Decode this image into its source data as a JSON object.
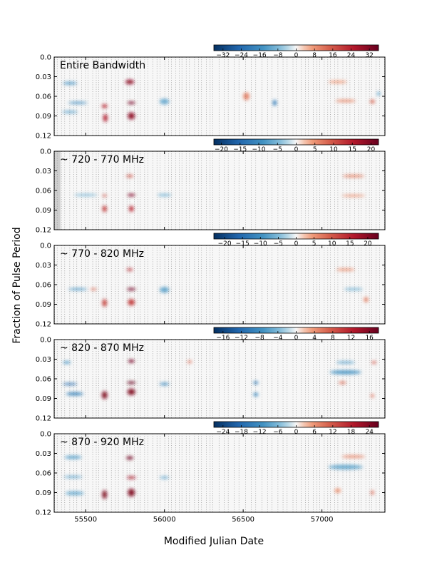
{
  "chart_data": {
    "type": "heatmap",
    "xlabel": "Modified Julian Date",
    "ylabel": "Fraction of Pulse Period",
    "xlim": [
      55300,
      57400
    ],
    "ylim": [
      0.12,
      0.0
    ],
    "x_ticks": [
      55500,
      56000,
      56500,
      57000
    ],
    "y_ticks": [
      0.0,
      0.03,
      0.06,
      0.09,
      0.12
    ],
    "y_tick_labels": [
      "0.0",
      "0.03",
      "0.06",
      "0.09",
      "0.12"
    ],
    "colormap": "diverging red-blue",
    "colorbar_position": "top-right",
    "observation_markers": "dotted vertical lines",
    "panels": [
      {
        "title": "Entire Bandwidth",
        "colorbar_ticks": [
          -32,
          -24,
          -16,
          -8,
          0,
          8,
          16,
          24,
          32
        ],
        "vmax": 36,
        "blobs": [
          {
            "x": 55780,
            "y": 0.038,
            "w": 55,
            "h": 0.007,
            "v": 30
          },
          {
            "x": 55620,
            "y": 0.075,
            "w": 35,
            "h": 0.006,
            "v": 22
          },
          {
            "x": 55625,
            "y": 0.093,
            "w": 28,
            "h": 0.012,
            "v": 24
          },
          {
            "x": 55790,
            "y": 0.07,
            "w": 50,
            "h": 0.004,
            "v": 34
          },
          {
            "x": 55790,
            "y": 0.09,
            "w": 45,
            "h": 0.011,
            "v": 30
          },
          {
            "x": 55400,
            "y": 0.04,
            "w": 90,
            "h": 0.004,
            "v": -14
          },
          {
            "x": 55450,
            "y": 0.07,
            "w": 120,
            "h": 0.003,
            "v": -16
          },
          {
            "x": 55400,
            "y": 0.084,
            "w": 100,
            "h": 0.004,
            "v": -10
          },
          {
            "x": 56000,
            "y": 0.068,
            "w": 60,
            "h": 0.009,
            "v": -10
          },
          {
            "x": 56520,
            "y": 0.06,
            "w": 40,
            "h": 0.012,
            "v": 10
          },
          {
            "x": 56700,
            "y": 0.07,
            "w": 25,
            "h": 0.009,
            "v": -20
          },
          {
            "x": 57150,
            "y": 0.067,
            "w": 130,
            "h": 0.004,
            "v": 9
          },
          {
            "x": 57320,
            "y": 0.068,
            "w": 30,
            "h": 0.006,
            "v": 14
          },
          {
            "x": 57360,
            "y": 0.056,
            "w": 20,
            "h": 0.006,
            "v": -12
          },
          {
            "x": 57100,
            "y": 0.038,
            "w": 120,
            "h": 0.004,
            "v": 7
          }
        ]
      },
      {
        "title": "~ 720 - 770 MHz",
        "colorbar_ticks": [
          -20,
          -15,
          -10,
          -5,
          0,
          5,
          10,
          15,
          20
        ],
        "vmax": 22,
        "no_data_until": 55340,
        "blobs": [
          {
            "x": 55790,
            "y": 0.067,
            "w": 50,
            "h": 0.004,
            "v": 20
          },
          {
            "x": 55780,
            "y": 0.038,
            "w": 45,
            "h": 0.004,
            "v": 10
          },
          {
            "x": 55790,
            "y": 0.088,
            "w": 30,
            "h": 0.009,
            "v": 14
          },
          {
            "x": 55620,
            "y": 0.088,
            "w": 28,
            "h": 0.01,
            "v": 12
          },
          {
            "x": 55620,
            "y": 0.068,
            "w": 25,
            "h": 0.004,
            "v": 10
          },
          {
            "x": 55500,
            "y": 0.067,
            "w": 150,
            "h": 0.003,
            "v": -5
          },
          {
            "x": 56000,
            "y": 0.067,
            "w": 90,
            "h": 0.004,
            "v": -5
          },
          {
            "x": 57200,
            "y": 0.038,
            "w": 140,
            "h": 0.004,
            "v": 6
          },
          {
            "x": 57200,
            "y": 0.068,
            "w": 150,
            "h": 0.003,
            "v": 5
          }
        ]
      },
      {
        "title": "~ 770 - 820 MHz",
        "colorbar_ticks": [
          -20,
          -15,
          -10,
          -5,
          0,
          5,
          10,
          15,
          20
        ],
        "vmax": 23,
        "blobs": [
          {
            "x": 55780,
            "y": 0.037,
            "w": 40,
            "h": 0.004,
            "v": 14
          },
          {
            "x": 55790,
            "y": 0.067,
            "w": 55,
            "h": 0.004,
            "v": 22
          },
          {
            "x": 55790,
            "y": 0.087,
            "w": 45,
            "h": 0.01,
            "v": 13
          },
          {
            "x": 55620,
            "y": 0.088,
            "w": 30,
            "h": 0.012,
            "v": 12
          },
          {
            "x": 55450,
            "y": 0.067,
            "w": 120,
            "h": 0.003,
            "v": -9
          },
          {
            "x": 55550,
            "y": 0.067,
            "w": 40,
            "h": 0.003,
            "v": 8
          },
          {
            "x": 56000,
            "y": 0.068,
            "w": 60,
            "h": 0.009,
            "v": -7
          },
          {
            "x": 57150,
            "y": 0.037,
            "w": 120,
            "h": 0.004,
            "v": 5
          },
          {
            "x": 57200,
            "y": 0.067,
            "w": 120,
            "h": 0.004,
            "v": -5
          },
          {
            "x": 57280,
            "y": 0.083,
            "w": 30,
            "h": 0.008,
            "v": 6
          }
        ]
      },
      {
        "title": "~ 820 - 870 MHz",
        "colorbar_ticks": [
          -16,
          -12,
          -8,
          -4,
          0,
          4,
          8,
          12,
          16
        ],
        "vmax": 18,
        "blobs": [
          {
            "x": 55790,
            "y": 0.033,
            "w": 40,
            "h": 0.005,
            "v": 17
          },
          {
            "x": 55790,
            "y": 0.066,
            "w": 55,
            "h": 0.004,
            "v": 18
          },
          {
            "x": 55790,
            "y": 0.08,
            "w": 50,
            "h": 0.01,
            "v": 16
          },
          {
            "x": 55620,
            "y": 0.085,
            "w": 35,
            "h": 0.012,
            "v": 16
          },
          {
            "x": 55400,
            "y": 0.068,
            "w": 90,
            "h": 0.003,
            "v": -12
          },
          {
            "x": 55430,
            "y": 0.083,
            "w": 110,
            "h": 0.005,
            "v": -9
          },
          {
            "x": 55380,
            "y": 0.035,
            "w": 50,
            "h": 0.004,
            "v": -7
          },
          {
            "x": 56000,
            "y": 0.068,
            "w": 60,
            "h": 0.004,
            "v": -8
          },
          {
            "x": 56580,
            "y": 0.066,
            "w": 30,
            "h": 0.005,
            "v": -10
          },
          {
            "x": 56580,
            "y": 0.084,
            "w": 30,
            "h": 0.006,
            "v": -8
          },
          {
            "x": 56160,
            "y": 0.034,
            "w": 30,
            "h": 0.004,
            "v": 6
          },
          {
            "x": 57150,
            "y": 0.05,
            "w": 200,
            "h": 0.006,
            "v": -7
          },
          {
            "x": 57150,
            "y": 0.035,
            "w": 120,
            "h": 0.004,
            "v": -5
          },
          {
            "x": 57330,
            "y": 0.035,
            "w": 30,
            "h": 0.004,
            "v": 8
          },
          {
            "x": 57130,
            "y": 0.066,
            "w": 50,
            "h": 0.004,
            "v": 6
          },
          {
            "x": 57320,
            "y": 0.086,
            "w": 20,
            "h": 0.006,
            "v": 6
          }
        ]
      },
      {
        "title": "~ 870 - 920 MHz",
        "colorbar_ticks": [
          -24,
          -18,
          -12,
          -6,
          0,
          6,
          12,
          18,
          24
        ],
        "vmax": 27,
        "blobs": [
          {
            "x": 55780,
            "y": 0.037,
            "w": 45,
            "h": 0.005,
            "v": 26
          },
          {
            "x": 55790,
            "y": 0.067,
            "w": 55,
            "h": 0.004,
            "v": 20
          },
          {
            "x": 55790,
            "y": 0.09,
            "w": 45,
            "h": 0.012,
            "v": 24
          },
          {
            "x": 55620,
            "y": 0.093,
            "w": 30,
            "h": 0.013,
            "v": 24
          },
          {
            "x": 55420,
            "y": 0.036,
            "w": 110,
            "h": 0.005,
            "v": -9
          },
          {
            "x": 55420,
            "y": 0.066,
            "w": 120,
            "h": 0.003,
            "v": -9
          },
          {
            "x": 55430,
            "y": 0.091,
            "w": 120,
            "h": 0.006,
            "v": -7
          },
          {
            "x": 56000,
            "y": 0.067,
            "w": 60,
            "h": 0.004,
            "v": -7
          },
          {
            "x": 57150,
            "y": 0.051,
            "w": 220,
            "h": 0.007,
            "v": -8
          },
          {
            "x": 57200,
            "y": 0.035,
            "w": 150,
            "h": 0.004,
            "v": 7
          },
          {
            "x": 57100,
            "y": 0.087,
            "w": 40,
            "h": 0.007,
            "v": 6
          },
          {
            "x": 57320,
            "y": 0.09,
            "w": 20,
            "h": 0.007,
            "v": 10
          }
        ]
      }
    ]
  }
}
